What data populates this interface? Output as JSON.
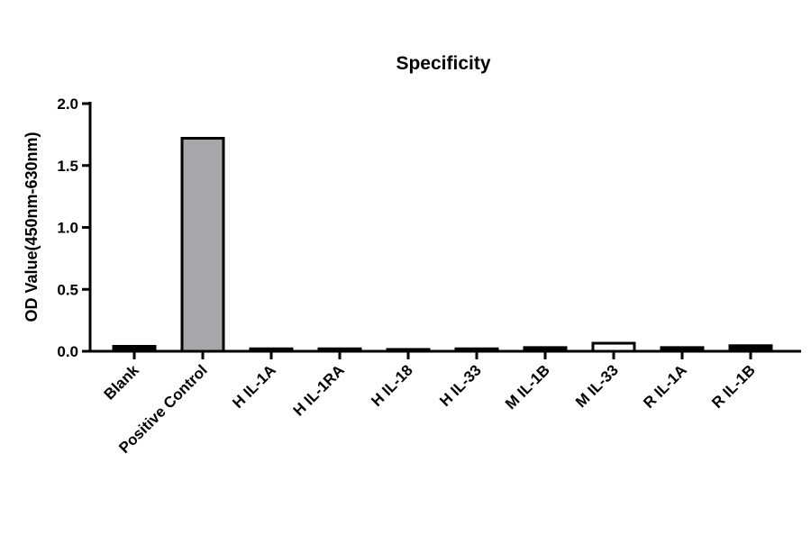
{
  "chart_data": {
    "type": "bar",
    "title": "Specificity",
    "y_label": "OD Value(450nm-630nm)",
    "categories": [
      "Blank",
      "Positive Control",
      "H IL-1A",
      "H IL-1RA",
      "H IL-18",
      "H IL-33",
      "M IL-1B",
      "M IL-33",
      "R IL-1A",
      "R IL-1B"
    ],
    "values": [
      0.04,
      1.72,
      0.02,
      0.02,
      0.015,
      0.02,
      0.03,
      0.065,
      0.03,
      0.045
    ],
    "colors": [
      "#000000",
      "#a6a6ab",
      "#000000",
      "#000000",
      "#000000",
      "#000000",
      "#000000",
      "#ffffff",
      "#000000",
      "#000000"
    ],
    "ylim": [
      0,
      2
    ],
    "yticks": [
      {
        "value": 0,
        "label": "0.0"
      },
      {
        "value": 0.5,
        "label": "0.5"
      },
      {
        "value": 1,
        "label": "1.0"
      },
      {
        "value": 1.5,
        "label": "1.5"
      },
      {
        "value": 2,
        "label": "2.0"
      }
    ],
    "grid": false
  }
}
